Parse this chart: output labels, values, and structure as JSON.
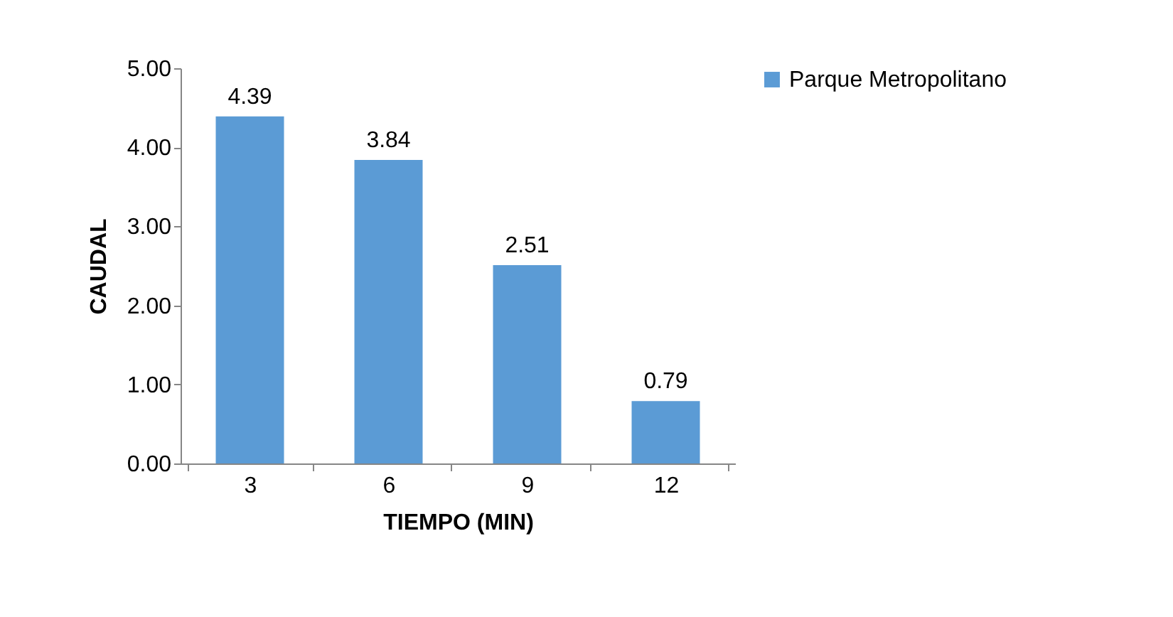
{
  "chart_data": {
    "type": "bar",
    "xlabel": "TIEMPO (MIN)",
    "ylabel": "CAUDAL",
    "categories": [
      "3",
      "6",
      "9",
      "12"
    ],
    "series": [
      {
        "name": "Parque Metropolitano",
        "color": "#5b9bd5",
        "values": [
          4.39,
          3.84,
          2.51,
          0.79
        ]
      }
    ],
    "ylim": [
      0,
      5
    ],
    "yticks": [
      {
        "value": 0,
        "label": "0.00"
      },
      {
        "value": 1,
        "label": "1.00"
      },
      {
        "value": 2,
        "label": "2.00"
      },
      {
        "value": 3,
        "label": "3.00"
      },
      {
        "value": 4,
        "label": "4.00"
      },
      {
        "value": 5,
        "label": "5.00"
      }
    ],
    "data_labels": true,
    "legend": "right",
    "grid": false
  }
}
